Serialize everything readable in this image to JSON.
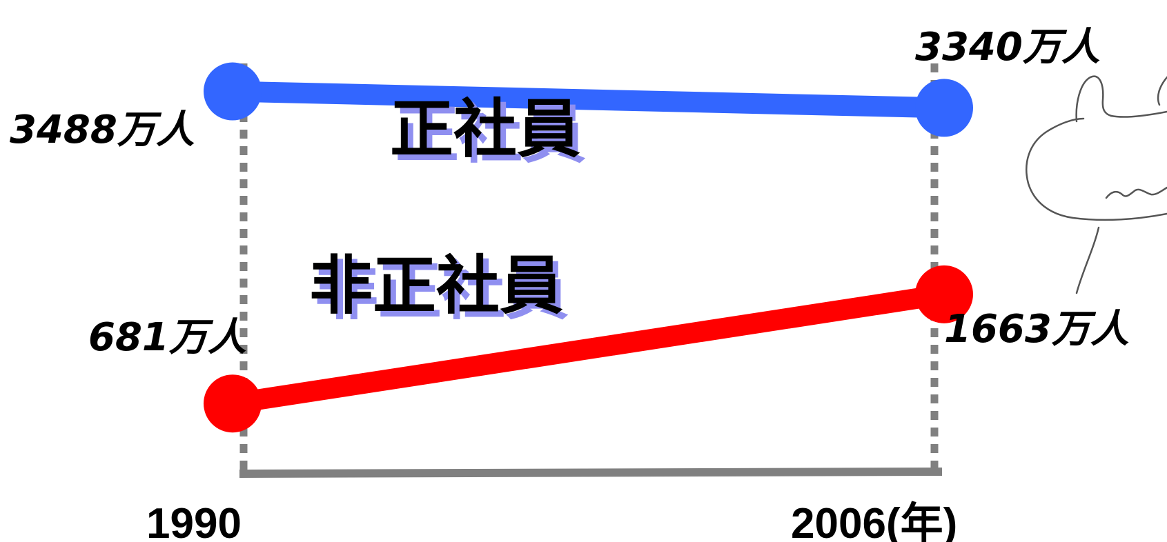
{
  "chart_data": {
    "type": "line",
    "x": [
      "1990",
      "2006"
    ],
    "x_unit": "(年)",
    "ylim": [
      0,
      4000
    ],
    "series": [
      {
        "name": "正社員",
        "color": "#3366ff",
        "values": [
          3488,
          3340
        ],
        "labels": [
          "3488万人",
          "3340万人"
        ]
      },
      {
        "name": "非正社員",
        "color": "#ff0000",
        "values": [
          681,
          1663
        ],
        "labels": [
          "681万人",
          "1663万人"
        ]
      }
    ],
    "grid": false,
    "decoration": "hand-drawn-animal-sketch"
  }
}
